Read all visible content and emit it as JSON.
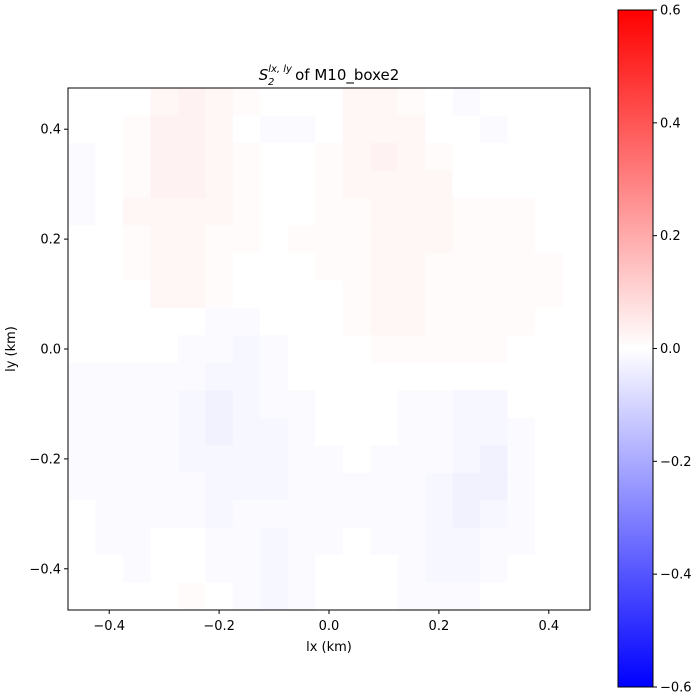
{
  "chart_data": {
    "type": "heatmap",
    "title": {
      "base": "S",
      "subscript": "2",
      "superscript": "lx, ly",
      "suffix": " of M10_boxe2"
    },
    "xlabel": "lx (km)",
    "ylabel": "ly (km)",
    "xlim": [
      -0.475,
      0.475
    ],
    "ylim": [
      -0.475,
      0.475
    ],
    "x_ticks": [
      -0.4,
      -0.2,
      0.0,
      0.2,
      0.4
    ],
    "x_tick_labels": [
      "−0.4",
      "−0.2",
      "0.0",
      "0.2",
      "0.4"
    ],
    "y_ticks": [
      -0.4,
      -0.2,
      0.0,
      0.2,
      0.4
    ],
    "y_tick_labels": [
      "−0.4",
      "−0.2",
      "0.0",
      "0.2",
      "0.4"
    ],
    "colormap": "bwr",
    "colormap_stops": [
      "#0000ff",
      "#ffffff",
      "#ff0000"
    ],
    "color_range": [
      -0.6,
      0.6
    ],
    "colorbar_ticks": [
      0.6,
      0.4,
      0.2,
      0.0,
      -0.2,
      -0.4,
      -0.6
    ],
    "colorbar_tick_labels": [
      "0.6",
      "0.4",
      "0.2",
      "0.0",
      "−0.2",
      "−0.4",
      "−0.6"
    ],
    "grid_x_centers": [
      -0.45,
      -0.4,
      -0.35,
      -0.3,
      -0.25,
      -0.2,
      -0.15,
      -0.1,
      -0.05,
      0.0,
      0.05,
      0.1,
      0.15,
      0.2,
      0.25,
      0.3,
      0.35,
      0.4,
      0.45
    ],
    "grid_y_centers": [
      0.45,
      0.4,
      0.35,
      0.3,
      0.25,
      0.2,
      0.15,
      0.1,
      0.05,
      0.0,
      -0.05,
      -0.1,
      -0.15,
      -0.2,
      -0.25,
      -0.3,
      -0.35,
      -0.4,
      -0.45
    ],
    "values": [
      [
        0.0,
        0.0,
        0.0,
        0.02,
        0.03,
        0.02,
        0.01,
        0.0,
        0.0,
        0.0,
        0.02,
        0.02,
        0.01,
        0.0,
        -0.01,
        0.0,
        0.0,
        0.0,
        0.0
      ],
      [
        0.0,
        0.0,
        0.01,
        0.03,
        0.03,
        0.02,
        0.0,
        -0.01,
        -0.01,
        0.0,
        0.02,
        0.02,
        0.02,
        0.0,
        0.0,
        -0.01,
        0.0,
        0.0,
        0.0
      ],
      [
        -0.01,
        0.0,
        0.01,
        0.03,
        0.03,
        0.02,
        0.01,
        0.0,
        0.0,
        0.01,
        0.02,
        0.03,
        0.02,
        0.01,
        0.0,
        0.0,
        0.0,
        0.0,
        0.0
      ],
      [
        -0.01,
        0.0,
        0.01,
        0.03,
        0.03,
        0.02,
        0.01,
        0.0,
        0.0,
        0.01,
        0.02,
        0.02,
        0.02,
        0.02,
        0.0,
        0.0,
        0.0,
        0.0,
        0.0
      ],
      [
        -0.01,
        0.0,
        0.02,
        0.02,
        0.02,
        0.02,
        0.01,
        0.0,
        0.0,
        0.01,
        0.01,
        0.02,
        0.02,
        0.02,
        0.01,
        0.01,
        0.01,
        0.0,
        0.0
      ],
      [
        0.0,
        0.0,
        0.01,
        0.02,
        0.02,
        0.01,
        0.01,
        0.0,
        0.01,
        0.01,
        0.01,
        0.02,
        0.02,
        0.02,
        0.01,
        0.01,
        0.01,
        0.0,
        0.0
      ],
      [
        0.0,
        0.0,
        0.01,
        0.02,
        0.02,
        0.01,
        0.0,
        0.0,
        0.0,
        0.01,
        0.01,
        0.02,
        0.02,
        0.01,
        0.01,
        0.01,
        0.01,
        0.01,
        0.0
      ],
      [
        0.0,
        0.0,
        0.0,
        0.02,
        0.02,
        0.01,
        0.0,
        0.0,
        0.0,
        0.0,
        0.01,
        0.02,
        0.02,
        0.01,
        0.01,
        0.01,
        0.01,
        0.01,
        0.0
      ],
      [
        0.0,
        0.0,
        0.0,
        0.0,
        0.0,
        -0.01,
        -0.01,
        0.0,
        0.0,
        0.0,
        0.01,
        0.02,
        0.02,
        0.01,
        0.01,
        0.01,
        0.01,
        0.0,
        0.0
      ],
      [
        0.0,
        0.0,
        0.0,
        0.0,
        -0.01,
        -0.01,
        -0.02,
        -0.01,
        0.0,
        0.0,
        0.0,
        0.01,
        0.01,
        0.01,
        0.01,
        0.01,
        0.0,
        0.0,
        0.0
      ],
      [
        -0.01,
        -0.01,
        -0.01,
        -0.01,
        -0.01,
        -0.02,
        -0.02,
        -0.01,
        0.0,
        0.0,
        0.0,
        0.0,
        0.0,
        0.0,
        0.0,
        0.0,
        0.0,
        0.0,
        0.0
      ],
      [
        -0.01,
        -0.01,
        -0.01,
        -0.01,
        -0.02,
        -0.03,
        -0.02,
        -0.01,
        -0.01,
        0.0,
        0.0,
        0.0,
        -0.01,
        -0.01,
        -0.02,
        -0.02,
        0.0,
        0.0,
        0.0
      ],
      [
        -0.01,
        -0.01,
        -0.01,
        -0.01,
        -0.02,
        -0.03,
        -0.02,
        -0.02,
        -0.01,
        0.0,
        0.0,
        0.0,
        -0.01,
        -0.01,
        -0.02,
        -0.02,
        -0.01,
        0.0,
        0.0
      ],
      [
        -0.01,
        -0.01,
        -0.01,
        -0.01,
        -0.02,
        -0.02,
        -0.02,
        -0.02,
        -0.01,
        -0.01,
        0.0,
        -0.01,
        -0.01,
        -0.01,
        -0.02,
        -0.03,
        -0.01,
        0.0,
        0.0
      ],
      [
        -0.01,
        -0.01,
        -0.01,
        -0.01,
        -0.01,
        -0.02,
        -0.02,
        -0.02,
        -0.01,
        -0.01,
        -0.01,
        -0.01,
        -0.01,
        -0.02,
        -0.03,
        -0.03,
        -0.01,
        0.0,
        0.0
      ],
      [
        0.0,
        -0.01,
        -0.01,
        -0.01,
        -0.01,
        -0.02,
        -0.01,
        -0.01,
        -0.01,
        -0.01,
        -0.01,
        -0.01,
        -0.01,
        -0.02,
        -0.03,
        -0.02,
        -0.01,
        0.0,
        0.0
      ],
      [
        0.0,
        -0.01,
        -0.01,
        0.0,
        0.0,
        -0.01,
        -0.01,
        -0.02,
        -0.01,
        -0.01,
        0.0,
        -0.01,
        -0.01,
        -0.02,
        -0.02,
        -0.01,
        -0.01,
        0.0,
        0.0
      ],
      [
        0.0,
        0.0,
        -0.01,
        0.0,
        0.0,
        -0.01,
        -0.01,
        -0.02,
        -0.01,
        0.0,
        0.0,
        0.0,
        -0.01,
        -0.02,
        -0.02,
        -0.01,
        0.0,
        0.0,
        0.0
      ],
      [
        0.0,
        0.0,
        0.0,
        0.0,
        0.01,
        0.0,
        -0.01,
        -0.02,
        -0.01,
        0.0,
        0.0,
        0.0,
        -0.01,
        -0.01,
        -0.01,
        0.0,
        0.0,
        0.0,
        0.0
      ]
    ]
  }
}
